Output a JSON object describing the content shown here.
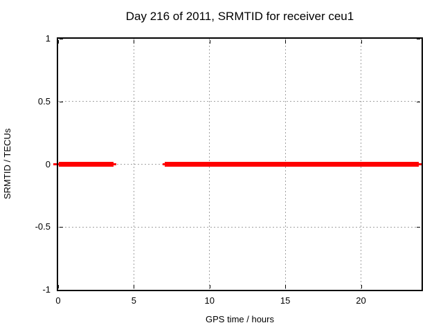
{
  "title": "Day 216 of 2011, SRMTID for receiver ceu1",
  "chart_data": {
    "type": "line",
    "title": "Day 216 of 2011, SRMTID for receiver ceu1",
    "xlabel": "GPS time / hours",
    "ylabel": "SRMTID / TECUs",
    "xlim": [
      0,
      24
    ],
    "ylim": [
      -1,
      1
    ],
    "xticks": [
      0,
      5,
      10,
      15,
      20
    ],
    "xtick_labels": [
      "0",
      "5",
      "10",
      "15",
      "20"
    ],
    "yticks": [
      -1,
      -0.5,
      0,
      0.5,
      1
    ],
    "ytick_labels": [
      "-1",
      "-0.5",
      "0",
      "0.5",
      "1"
    ],
    "grid": "dotted",
    "grid_color": "#a0a0a0",
    "legend": "none",
    "line_color": "#ff0000",
    "series": [
      {
        "name": "SRMTID",
        "y_value": 0,
        "segments_hours": [
          [
            0,
            3.84
          ],
          [
            6.9,
            24.0
          ]
        ]
      }
    ],
    "render_segments": [
      {
        "x0": -0.32,
        "x1": 0.05,
        "style": "thin"
      },
      {
        "x0": 0.03,
        "x1": 3.66,
        "style": "thick"
      },
      {
        "x0": 3.66,
        "x1": 3.84,
        "style": "thin"
      },
      {
        "x0": 6.9,
        "x1": 7.06,
        "style": "thin"
      },
      {
        "x0": 7.04,
        "x1": 23.82,
        "style": "thick"
      },
      {
        "x0": 23.82,
        "x1": 24.0,
        "style": "thin"
      }
    ]
  }
}
